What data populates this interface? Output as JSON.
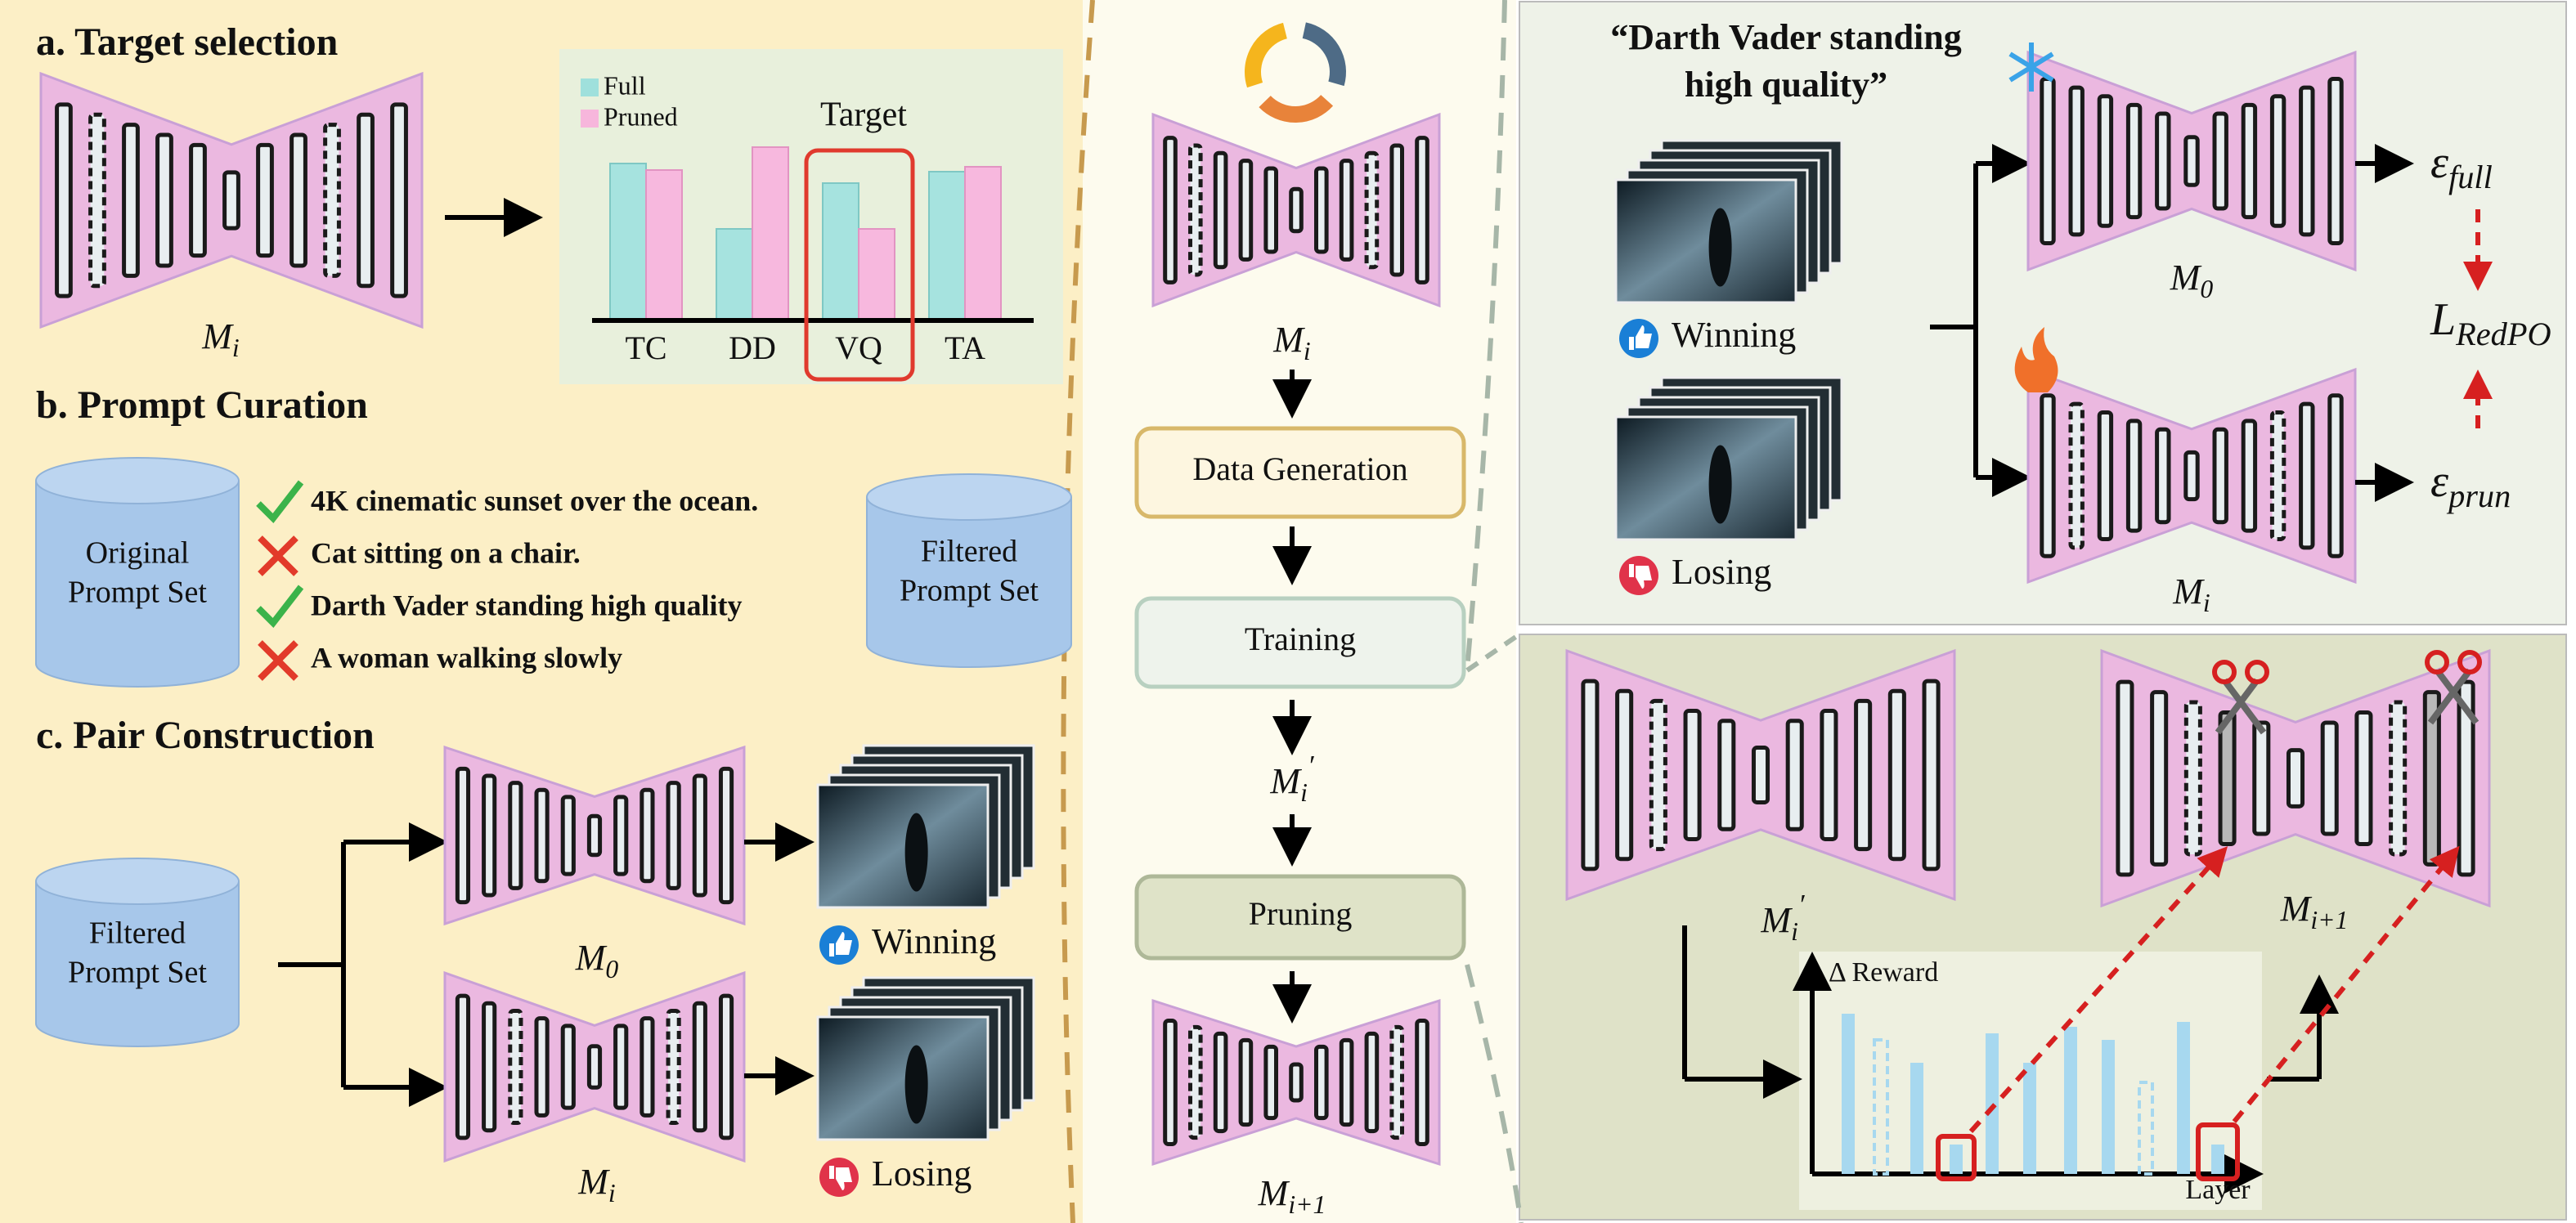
{
  "panel_a": {
    "title": "a. Target selection",
    "model": {
      "base": "M",
      "sub": "i"
    },
    "legend": [
      "Full",
      "Pruned"
    ],
    "target": "Target",
    "categories": [
      "TC",
      "DD",
      "VQ",
      "TA"
    ]
  },
  "panel_b": {
    "title": "b. Prompt Curation",
    "source": [
      "Original",
      "Prompt Set"
    ],
    "prompts": [
      {
        "text": "4K cinematic sunset over the ocean.",
        "kept": true
      },
      {
        "text": "Cat sitting on a chair.",
        "kept": false
      },
      {
        "text": "Darth Vader standing high quality",
        "kept": true
      },
      {
        "text": "A woman walking slowly",
        "kept": false
      }
    ],
    "result": [
      "Filtered",
      "Prompt Set"
    ]
  },
  "panel_c": {
    "title": "c. Pair Construction",
    "source": [
      "Filtered",
      "Prompt Set"
    ],
    "models": [
      {
        "base": "M",
        "sub": "0"
      },
      {
        "base": "M",
        "sub": "i"
      }
    ],
    "outcomes": [
      "Winning",
      "Losing"
    ]
  },
  "pipeline": {
    "input": {
      "base": "M",
      "sub": "i"
    },
    "steps": [
      "Data Generation",
      "Training",
      "Pruning"
    ],
    "trained": {
      "base": "M",
      "sub": "i",
      "sup": "′"
    },
    "output": {
      "base": "M",
      "sub": "i+1"
    }
  },
  "dpo": {
    "prompt": [
      "“Darth Vader standing",
      "high quality”"
    ],
    "outcomes": [
      "Winning",
      "Losing"
    ],
    "models": [
      {
        "base": "M",
        "sub": "0"
      },
      {
        "base": "M",
        "sub": "i"
      }
    ],
    "outputs": [
      {
        "base": "ε",
        "sub": "full"
      },
      {
        "base": "ε",
        "sub": "prun"
      }
    ],
    "loss": {
      "base": "L",
      "sub": "RedPO"
    }
  },
  "prune": {
    "models": [
      {
        "base": "M",
        "sub": "i",
        "sup": "′"
      },
      {
        "base": "M",
        "sub": "i+1"
      }
    ],
    "y_label": "Δ Reward",
    "x_label": "Layer"
  }
}
